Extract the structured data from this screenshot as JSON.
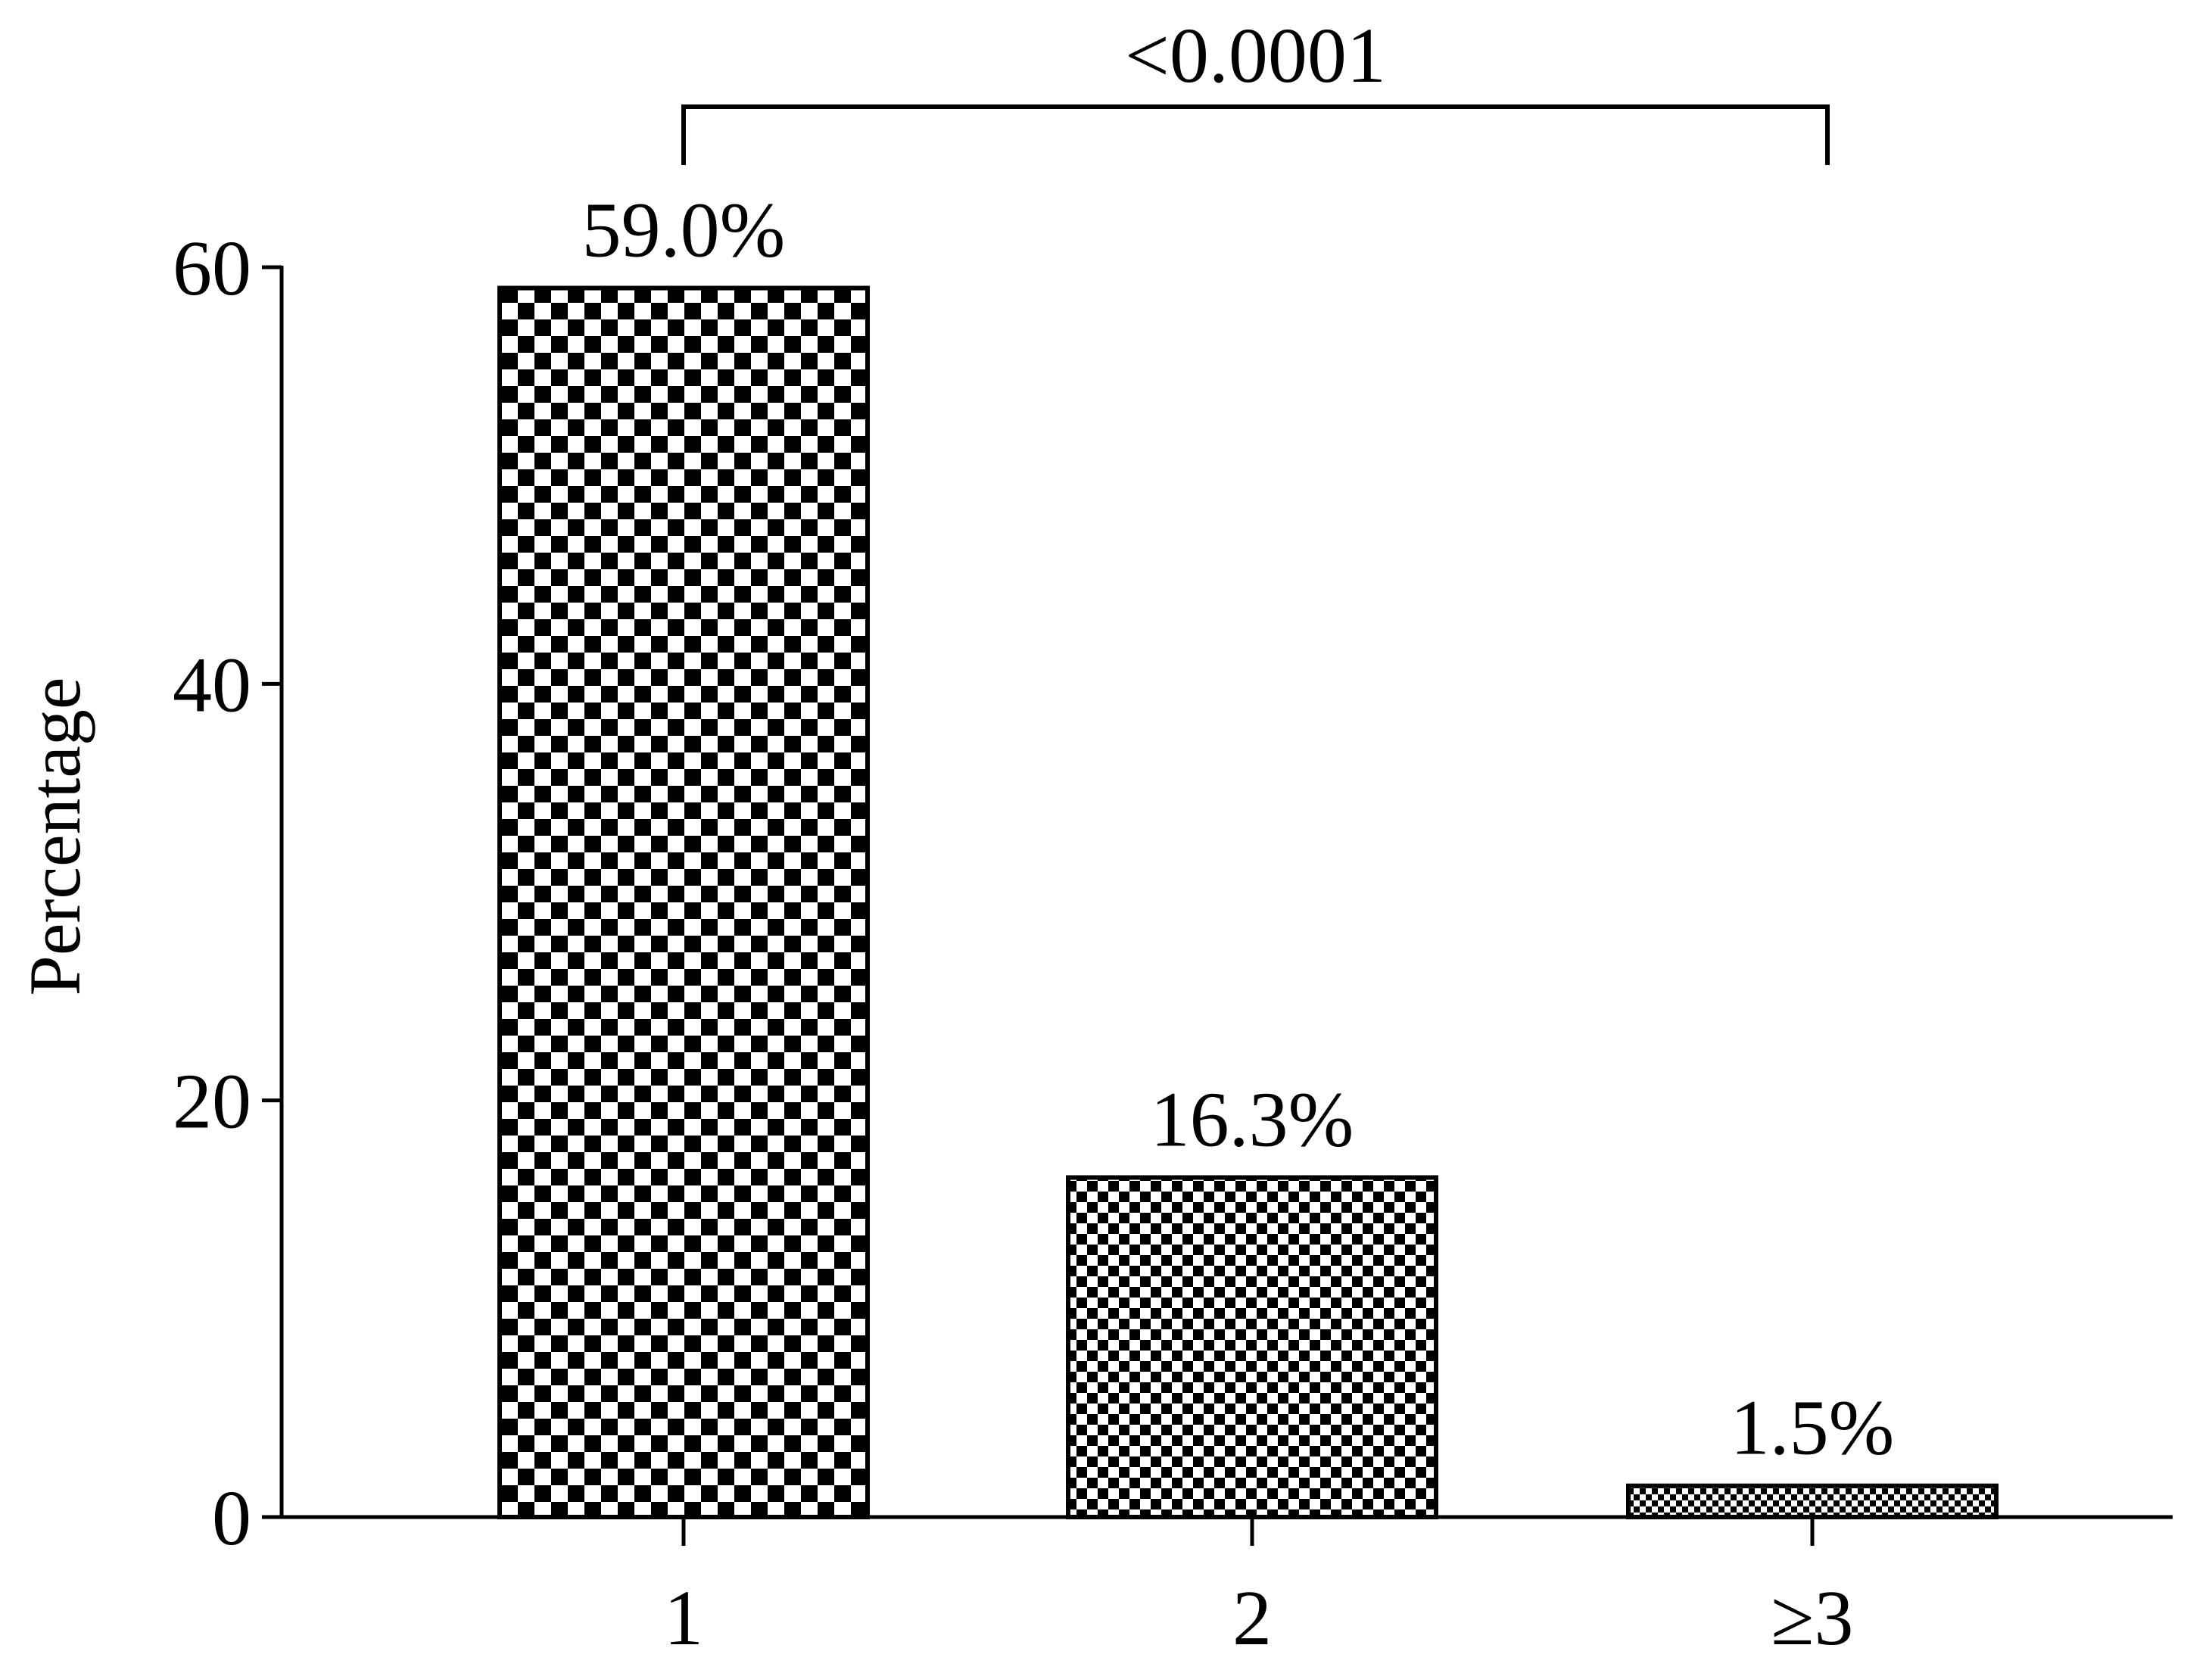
{
  "chart_data": {
    "type": "bar",
    "categories": [
      "1",
      "2",
      "≥3"
    ],
    "values": [
      59.0,
      16.3,
      1.5
    ],
    "value_labels": [
      "59.0%",
      "16.3%",
      "1.5%"
    ],
    "title": "",
    "xlabel": "",
    "ylabel": "Percentage",
    "ylim": [
      0,
      60
    ],
    "yticks": [
      0,
      20,
      40,
      60
    ],
    "ytick_labels": [
      "0",
      "20",
      "40",
      "60"
    ],
    "grid": false,
    "legend": "none",
    "patterns": [
      "checker-large",
      "checker-medium",
      "checker-small"
    ],
    "annotations": [
      {
        "type": "significance-bracket",
        "from_category": "1",
        "to_category": "≥3",
        "text": "<0.0001"
      }
    ],
    "colors": {
      "foreground": "#000000",
      "background": "#ffffff"
    }
  }
}
